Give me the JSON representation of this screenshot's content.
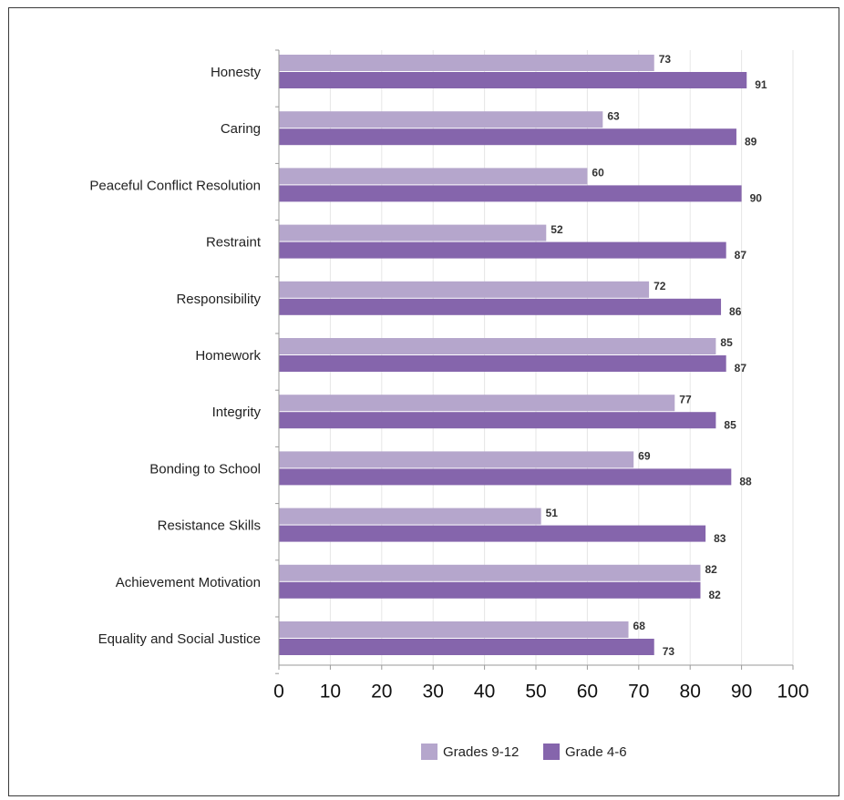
{
  "chart_data": {
    "type": "bar",
    "orientation": "horizontal",
    "categories": [
      "Honesty",
      "Caring",
      "Peaceful Conflict Resolution",
      "Restraint",
      "Responsibility",
      "Homework",
      "Integrity",
      "Bonding to School",
      "Resistance Skills",
      "Achievement Motivation",
      "Equality and Social Justice"
    ],
    "series": [
      {
        "name": "Grades 9-12",
        "color": "#b5a6cc",
        "values": [
          73,
          63,
          60,
          52,
          72,
          85,
          77,
          69,
          51,
          82,
          68
        ]
      },
      {
        "name": "Grade 4-6",
        "color": "#8565ac",
        "values": [
          91,
          89,
          90,
          87,
          86,
          87,
          85,
          88,
          83,
          82,
          73
        ]
      }
    ],
    "xlim": [
      0,
      100
    ],
    "xticks": [
      0,
      10,
      20,
      30,
      40,
      50,
      60,
      70,
      80,
      90,
      100
    ],
    "xticks_labels": [
      "0",
      "10",
      "20",
      "30",
      "40",
      "50",
      "60",
      "70",
      "80",
      "90",
      "100"
    ],
    "grid": true,
    "legend_position": "bottom"
  }
}
